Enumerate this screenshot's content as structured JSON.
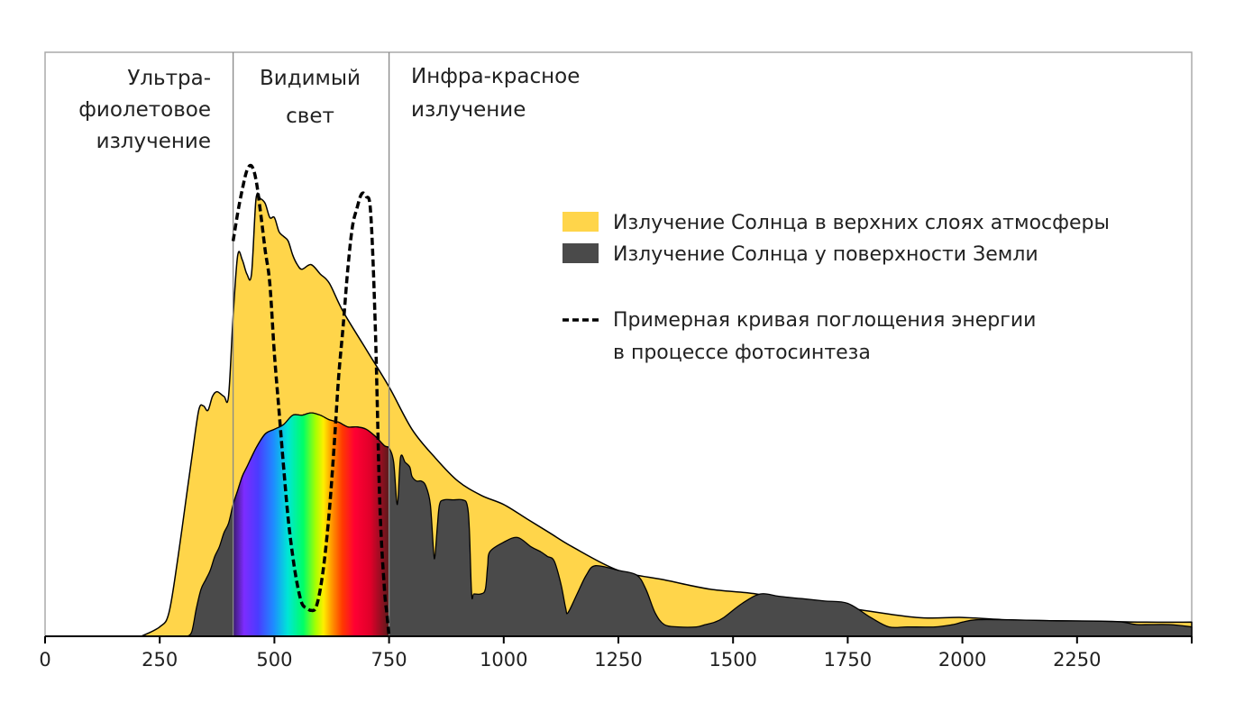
{
  "chart_data": {
    "type": "area",
    "title": "",
    "xlabel": "",
    "ylabel": "",
    "xlim": [
      0,
      2500
    ],
    "ylim": [
      0,
      1
    ],
    "grid": false,
    "legend_position": "right",
    "x_ticks": [
      0,
      250,
      500,
      750,
      1000,
      1250,
      1500,
      1750,
      2000,
      2250
    ],
    "x_tick_labels": [
      "0",
      "250",
      "500",
      "750",
      "1000",
      "1250",
      "1500",
      "1750",
      "2000",
      "2250"
    ],
    "region_boundaries": [
      410,
      750
    ],
    "regions": [
      {
        "name": "uv",
        "lines": [
          "Ультра-",
          "фиолетовое",
          "излучение"
        ]
      },
      {
        "name": "visible",
        "lines": [
          "Видимый",
          "свет"
        ]
      },
      {
        "name": "infrared",
        "lines": [
          "Инфра-красное",
          "излучение"
        ]
      }
    ],
    "series": [
      {
        "name": "Излучение Солнца в верхних слоях атмосферы",
        "color": "#FFD54A",
        "style": "filled-area",
        "points": [
          [
            210,
            0.0
          ],
          [
            250,
            0.02
          ],
          [
            270,
            0.05
          ],
          [
            290,
            0.17
          ],
          [
            310,
            0.31
          ],
          [
            320,
            0.38
          ],
          [
            335,
            0.48
          ],
          [
            345,
            0.49
          ],
          [
            355,
            0.48
          ],
          [
            365,
            0.51
          ],
          [
            375,
            0.52
          ],
          [
            390,
            0.51
          ],
          [
            400,
            0.51
          ],
          [
            410,
            0.68
          ],
          [
            420,
            0.81
          ],
          [
            430,
            0.8
          ],
          [
            440,
            0.77
          ],
          [
            450,
            0.77
          ],
          [
            460,
            0.93
          ],
          [
            470,
            0.93
          ],
          [
            480,
            0.92
          ],
          [
            490,
            0.89
          ],
          [
            500,
            0.89
          ],
          [
            510,
            0.86
          ],
          [
            520,
            0.85
          ],
          [
            530,
            0.84
          ],
          [
            540,
            0.81
          ],
          [
            550,
            0.79
          ],
          [
            560,
            0.78
          ],
          [
            580,
            0.79
          ],
          [
            600,
            0.77
          ],
          [
            620,
            0.75
          ],
          [
            650,
            0.69
          ],
          [
            700,
            0.61
          ],
          [
            750,
            0.53
          ],
          [
            800,
            0.44
          ],
          [
            850,
            0.38
          ],
          [
            900,
            0.33
          ],
          [
            950,
            0.3
          ],
          [
            1000,
            0.28
          ],
          [
            1050,
            0.25
          ],
          [
            1100,
            0.22
          ],
          [
            1150,
            0.19
          ],
          [
            1250,
            0.14
          ],
          [
            1350,
            0.12
          ],
          [
            1450,
            0.1
          ],
          [
            1550,
            0.09
          ],
          [
            1650,
            0.07
          ],
          [
            1750,
            0.06
          ],
          [
            1900,
            0.04
          ],
          [
            2000,
            0.04
          ],
          [
            2100,
            0.035
          ],
          [
            2200,
            0.033
          ],
          [
            2300,
            0.032
          ],
          [
            2400,
            0.03
          ],
          [
            2500,
            0.03
          ]
        ]
      },
      {
        "name": "Излучение Солнца у поверхности Земли",
        "color": "#4a4a4a",
        "style": "filled-area",
        "points": [
          [
            310,
            0.0
          ],
          [
            320,
            0.01
          ],
          [
            330,
            0.06
          ],
          [
            340,
            0.1
          ],
          [
            350,
            0.12
          ],
          [
            360,
            0.14
          ],
          [
            370,
            0.17
          ],
          [
            380,
            0.19
          ],
          [
            390,
            0.22
          ],
          [
            400,
            0.24
          ],
          [
            410,
            0.28
          ],
          [
            420,
            0.31
          ],
          [
            430,
            0.34
          ],
          [
            440,
            0.36
          ],
          [
            460,
            0.4
          ],
          [
            480,
            0.43
          ],
          [
            500,
            0.44
          ],
          [
            520,
            0.45
          ],
          [
            540,
            0.47
          ],
          [
            560,
            0.47
          ],
          [
            580,
            0.475
          ],
          [
            600,
            0.47
          ],
          [
            620,
            0.46
          ],
          [
            640,
            0.455
          ],
          [
            660,
            0.445
          ],
          [
            680,
            0.445
          ],
          [
            700,
            0.44
          ],
          [
            720,
            0.425
          ],
          [
            740,
            0.405
          ],
          [
            750,
            0.4
          ],
          [
            760,
            0.37
          ],
          [
            768,
            0.28
          ],
          [
            775,
            0.38
          ],
          [
            785,
            0.37
          ],
          [
            795,
            0.36
          ],
          [
            800,
            0.34
          ],
          [
            810,
            0.33
          ],
          [
            820,
            0.33
          ],
          [
            830,
            0.32
          ],
          [
            840,
            0.28
          ],
          [
            847,
            0.18
          ],
          [
            850,
            0.17
          ],
          [
            855,
            0.23
          ],
          [
            860,
            0.28
          ],
          [
            870,
            0.29
          ],
          [
            890,
            0.29
          ],
          [
            910,
            0.29
          ],
          [
            920,
            0.28
          ],
          [
            925,
            0.23
          ],
          [
            930,
            0.09
          ],
          [
            935,
            0.09
          ],
          [
            950,
            0.09
          ],
          [
            960,
            0.1
          ],
          [
            965,
            0.15
          ],
          [
            970,
            0.18
          ],
          [
            1000,
            0.2
          ],
          [
            1030,
            0.21
          ],
          [
            1060,
            0.19
          ],
          [
            1080,
            0.18
          ],
          [
            1095,
            0.17
          ],
          [
            1110,
            0.16
          ],
          [
            1125,
            0.11
          ],
          [
            1135,
            0.06
          ],
          [
            1140,
            0.05
          ],
          [
            1160,
            0.09
          ],
          [
            1180,
            0.13
          ],
          [
            1200,
            0.15
          ],
          [
            1250,
            0.14
          ],
          [
            1290,
            0.13
          ],
          [
            1310,
            0.1
          ],
          [
            1330,
            0.05
          ],
          [
            1350,
            0.025
          ],
          [
            1380,
            0.02
          ],
          [
            1420,
            0.02
          ],
          [
            1440,
            0.025
          ],
          [
            1460,
            0.03
          ],
          [
            1480,
            0.04
          ],
          [
            1520,
            0.07
          ],
          [
            1560,
            0.09
          ],
          [
            1600,
            0.085
          ],
          [
            1650,
            0.08
          ],
          [
            1700,
            0.075
          ],
          [
            1750,
            0.07
          ],
          [
            1800,
            0.04
          ],
          [
            1840,
            0.02
          ],
          [
            1880,
            0.02
          ],
          [
            1940,
            0.02
          ],
          [
            1980,
            0.025
          ],
          [
            2000,
            0.03
          ],
          [
            2030,
            0.035
          ],
          [
            2100,
            0.035
          ],
          [
            2200,
            0.033
          ],
          [
            2300,
            0.032
          ],
          [
            2350,
            0.03
          ],
          [
            2380,
            0.025
          ],
          [
            2450,
            0.025
          ],
          [
            2500,
            0.02
          ]
        ]
      },
      {
        "name": "Примерная кривая поглощения энергии в процессе фотосинтеза",
        "color": "#000000",
        "style": "dashed-line",
        "points": [
          [
            410,
            0.84
          ],
          [
            420,
            0.9
          ],
          [
            430,
            0.95
          ],
          [
            440,
            0.99
          ],
          [
            450,
            1.0
          ],
          [
            460,
            0.97
          ],
          [
            470,
            0.9
          ],
          [
            480,
            0.82
          ],
          [
            490,
            0.75
          ],
          [
            500,
            0.6
          ],
          [
            510,
            0.48
          ],
          [
            520,
            0.36
          ],
          [
            530,
            0.25
          ],
          [
            540,
            0.17
          ],
          [
            550,
            0.11
          ],
          [
            560,
            0.07
          ],
          [
            570,
            0.06
          ],
          [
            580,
            0.055
          ],
          [
            590,
            0.06
          ],
          [
            600,
            0.1
          ],
          [
            610,
            0.17
          ],
          [
            620,
            0.27
          ],
          [
            630,
            0.4
          ],
          [
            640,
            0.55
          ],
          [
            650,
            0.66
          ],
          [
            660,
            0.78
          ],
          [
            670,
            0.87
          ],
          [
            680,
            0.91
          ],
          [
            690,
            0.94
          ],
          [
            700,
            0.935
          ],
          [
            710,
            0.9
          ],
          [
            720,
            0.66
          ],
          [
            730,
            0.28
          ],
          [
            740,
            0.1
          ],
          [
            745,
            0.05
          ],
          [
            750,
            0.0
          ]
        ]
      }
    ],
    "visible_spectrum_overlay": {
      "range": [
        410,
        750
      ],
      "stops": [
        [
          0.0,
          "#3a1a6e"
        ],
        [
          0.07,
          "#7d2cff"
        ],
        [
          0.16,
          "#4a3cff"
        ],
        [
          0.26,
          "#1e8cff"
        ],
        [
          0.35,
          "#00e6d6"
        ],
        [
          0.45,
          "#00ff66"
        ],
        [
          0.53,
          "#a8ff00"
        ],
        [
          0.58,
          "#ffee00"
        ],
        [
          0.63,
          "#ff9c00"
        ],
        [
          0.7,
          "#ff3a00"
        ],
        [
          0.78,
          "#ff0033"
        ],
        [
          0.88,
          "#e0002a"
        ],
        [
          1.0,
          "#5a1a1a"
        ]
      ]
    }
  }
}
